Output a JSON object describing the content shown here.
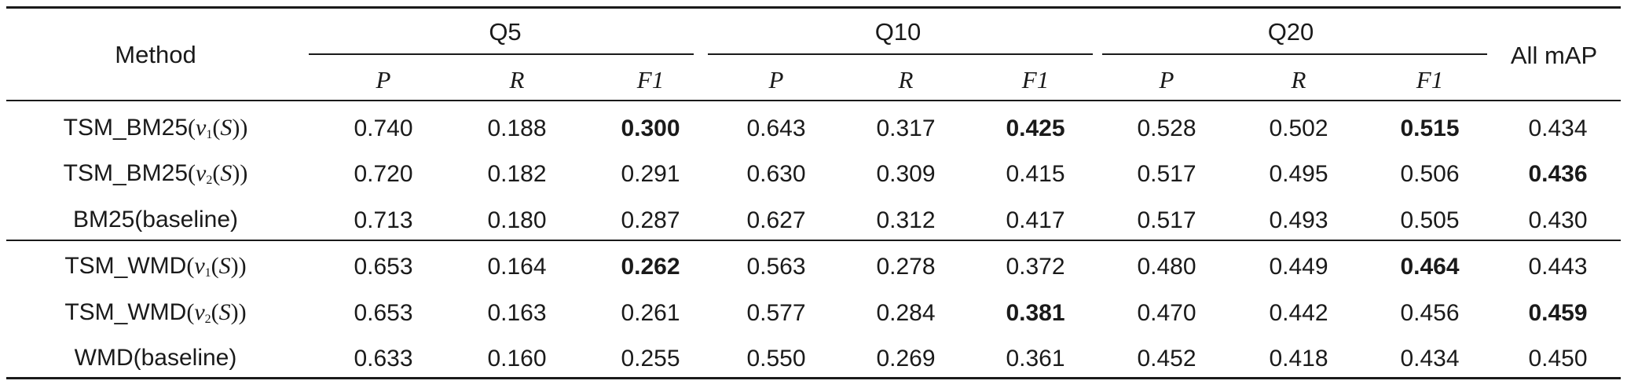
{
  "table": {
    "header": {
      "method": "Method",
      "groups": [
        "Q5",
        "Q10",
        "Q20"
      ],
      "all_map": "All mAP",
      "sub_columns": [
        "P",
        "R",
        "F1"
      ]
    },
    "rows": [
      {
        "method_prefix": "TSM_BM25",
        "method_math": "v1(S)",
        "method_suffix": "",
        "values": [
          "0.740",
          "0.188",
          "0.300",
          "0.643",
          "0.317",
          "0.425",
          "0.528",
          "0.502",
          "0.515",
          "0.434"
        ],
        "bold": [
          2,
          5,
          8
        ]
      },
      {
        "method_prefix": "TSM_BM25",
        "method_math": "v2(S)",
        "method_suffix": "",
        "values": [
          "0.720",
          "0.182",
          "0.291",
          "0.630",
          "0.309",
          "0.415",
          "0.517",
          "0.495",
          "0.506",
          "0.436"
        ],
        "bold": [
          9
        ]
      },
      {
        "method_prefix": "BM25(baseline)",
        "method_math": "",
        "method_suffix": "",
        "values": [
          "0.713",
          "0.180",
          "0.287",
          "0.627",
          "0.312",
          "0.417",
          "0.517",
          "0.493",
          "0.505",
          "0.430"
        ],
        "bold": []
      },
      {
        "method_prefix": "TSM_WMD",
        "method_math": "v1(S)",
        "method_suffix": "",
        "values": [
          "0.653",
          "0.164",
          "0.262",
          "0.563",
          "0.278",
          "0.372",
          "0.480",
          "0.449",
          "0.464",
          "0.443"
        ],
        "bold": [
          2,
          8
        ]
      },
      {
        "method_prefix": "TSM_WMD",
        "method_math": "v2(S)",
        "method_suffix": "",
        "values": [
          "0.653",
          "0.163",
          "0.261",
          "0.577",
          "0.284",
          "0.381",
          "0.470",
          "0.442",
          "0.456",
          "0.459"
        ],
        "bold": [
          5,
          9
        ]
      },
      {
        "method_prefix": "WMD(baseline)",
        "method_math": "",
        "method_suffix": "",
        "values": [
          "0.633",
          "0.160",
          "0.255",
          "0.550",
          "0.269",
          "0.361",
          "0.452",
          "0.418",
          "0.434",
          "0.450"
        ],
        "bold": []
      }
    ]
  }
}
